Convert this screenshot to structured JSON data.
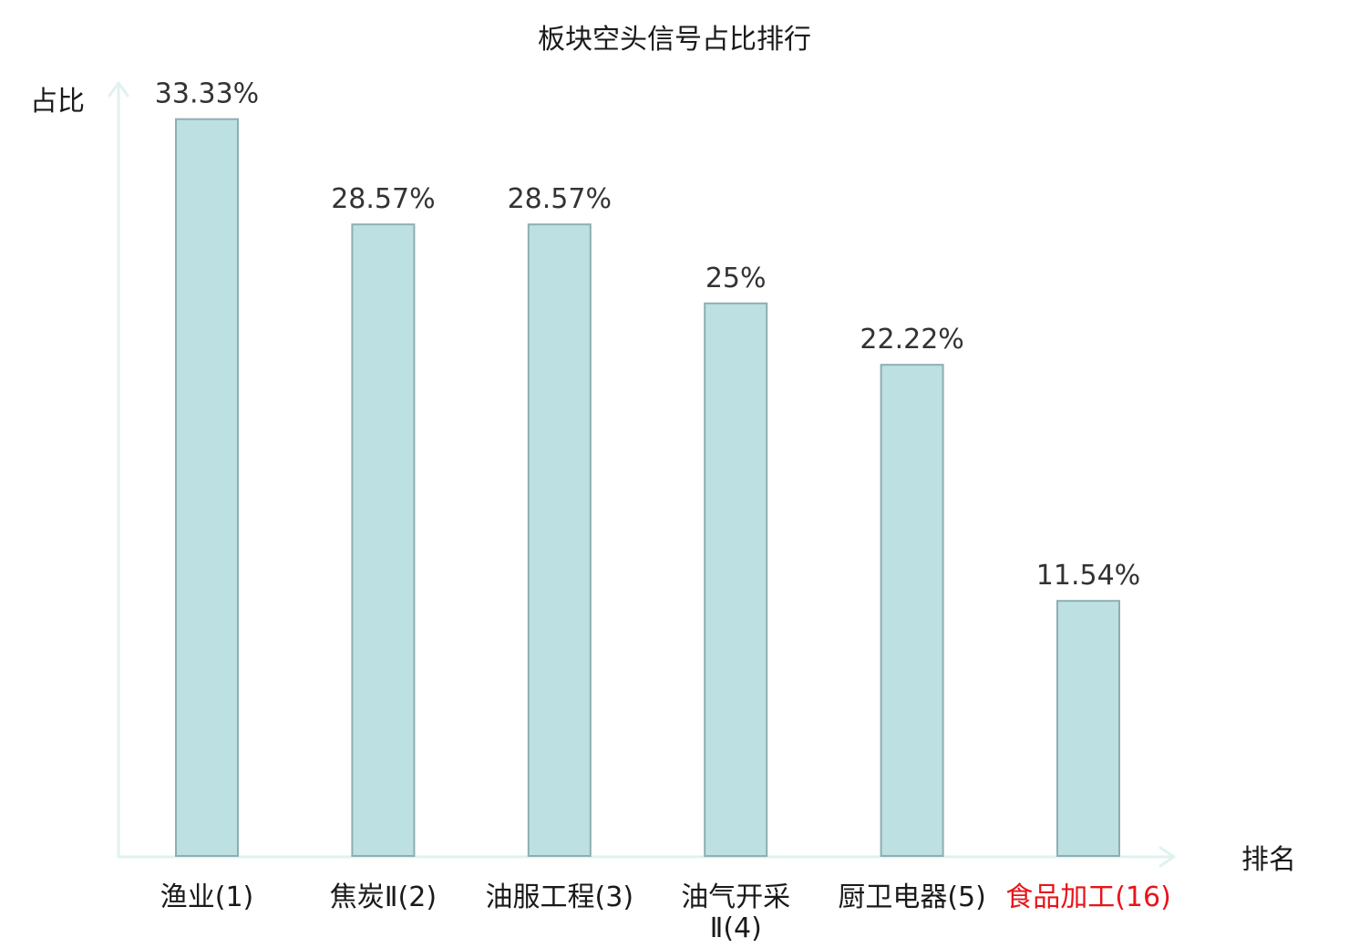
{
  "chart_data": {
    "type": "bar",
    "title": "板块空头信号占比排行",
    "xlabel": "排名",
    "ylabel": "占比",
    "ylim": [
      0,
      35
    ],
    "grid": false,
    "categories": [
      [
        "渔业(1)"
      ],
      [
        "焦炭Ⅱ(2)"
      ],
      [
        "油服工程(3)"
      ],
      [
        "油气开采",
        "Ⅱ(4)"
      ],
      [
        "厨卫电器(5)"
      ],
      [
        "食品加工(16)"
      ]
    ],
    "values": [
      33.33,
      28.57,
      28.57,
      25,
      22.22,
      11.54
    ],
    "value_labels": [
      "33.33%",
      "28.57%",
      "28.57%",
      "25%",
      "22.22%",
      "11.54%"
    ],
    "highlight_index": 5,
    "colors": {
      "bar_fill": "#bde1e3",
      "bar_stroke": "#8eaeb0",
      "axis": "#e0f2ef",
      "label": "#1a1a1a",
      "value_label": "#333333",
      "highlight": "#e8141a"
    }
  }
}
